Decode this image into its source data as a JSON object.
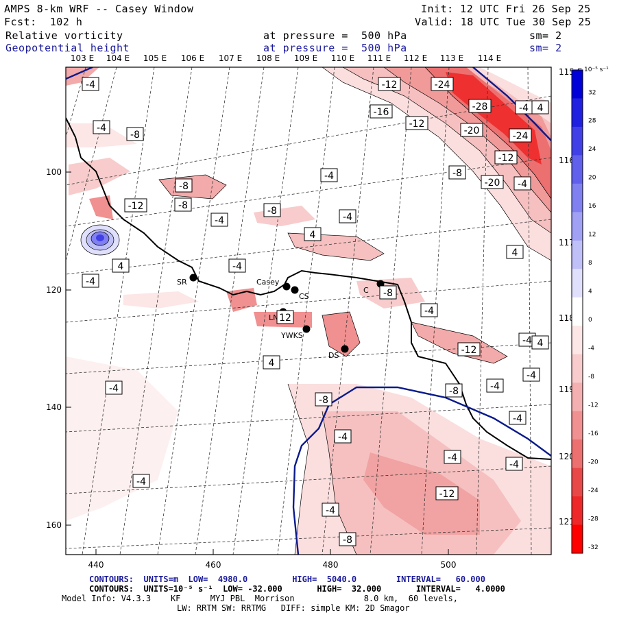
{
  "header": {
    "model": "AMPS 8-km WRF -- Casey Window",
    "init": "Init: 12 UTC Fri 26 Sep 25",
    "fcst": "Fcst:  102 h",
    "valid": "Valid: 18 UTC Tue 30 Sep 25",
    "field1": "Relative vorticity",
    "field1_pressure": "at pressure =  500 hPa",
    "field1_sm": "sm= 2",
    "field2": "Geopotential height",
    "field2_pressure": "at pressure =  500 hPa",
    "field2_sm": "sm= 2"
  },
  "lon_labels": [
    "103 E",
    "104 E",
    "105 E",
    "106 E",
    "107 E",
    "108 E",
    "109 E",
    "110 E",
    "111 E",
    "112 E",
    "113 E",
    "114 E"
  ],
  "lat_labels_right": [
    "115 E",
    "116 E",
    "117 E",
    "118 E",
    "119 E",
    "120 E",
    "121 E"
  ],
  "x_axis": [
    "440",
    "460",
    "480",
    "500"
  ],
  "y_axis": [
    "100",
    "120",
    "140",
    "160"
  ],
  "colorbar": {
    "unit": "10⁻⁵ s⁻¹",
    "ticks": [
      "32",
      "28",
      "24",
      "20",
      "16",
      "12",
      "8",
      "4",
      "0",
      "-4",
      "-8",
      "-12",
      "-16",
      "-20",
      "-24",
      "-28",
      "-32"
    ],
    "colors": [
      "#0000d8",
      "#2020e0",
      "#4040e6",
      "#6060ec",
      "#8080f0",
      "#a0a0f4",
      "#c0c0f8",
      "#e0e0fc",
      "#ffffff",
      "#fce6e6",
      "#f8cccc",
      "#f4b0b0",
      "#f09090",
      "#ec7070",
      "#e84848",
      "#ee2828",
      "#ff0000"
    ]
  },
  "stations": [
    {
      "name": "SR"
    },
    {
      "name": "Casey"
    },
    {
      "name": "CS"
    },
    {
      "name": "LN"
    },
    {
      "name": "YWKS"
    },
    {
      "name": "DS"
    },
    {
      "name": "C"
    }
  ],
  "contour_labels": [
    "-4",
    "-4",
    "-8",
    "-12",
    "-24",
    "-28",
    "-16",
    "-12",
    "-20",
    "-24",
    "-12",
    "-8",
    "-20",
    "-4",
    "4",
    "-4",
    "-12",
    "-8",
    "-4",
    "-8",
    "-4",
    "-8",
    "-4",
    "4",
    "4",
    "4",
    "-4",
    "-4",
    "-8",
    "-4",
    "12",
    "-4",
    "-12",
    "-8",
    "-4",
    "-4",
    "4",
    "-4",
    "-8",
    "-4",
    "-4",
    "-4",
    "-8",
    "-12",
    "-4",
    "-4",
    "-8",
    "4",
    "-4"
  ],
  "footer": {
    "line1": "CONTOURS:  UNITS=m  LOW=  4980.0         HIGH=  5040.0        INTERVAL=   60.000",
    "line2": "CONTOURS:  UNITS=10⁻⁵ s⁻¹  LOW= -32.000       HIGH=  32.000       INTERVAL=   4.0000",
    "line3": "Model Info: V4.3.3    KF      MYJ PBL  Morrison              8.0 km,  60 levels,",
    "line4": "LW: RRTM SW: RRTMG   DIFF: simple KM: 2D Smagor"
  }
}
